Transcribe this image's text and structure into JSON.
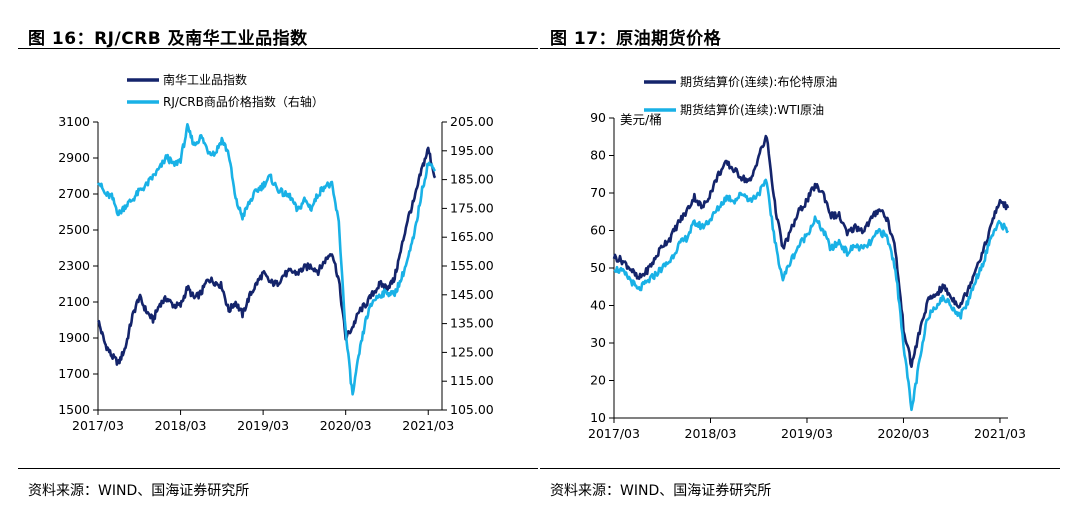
{
  "left": {
    "title": "图 16：RJ/CRB 及南华工业品指数",
    "source": "资料来源：WIND、国海证券研究所"
  },
  "right": {
    "title": "图 17：原油期货价格",
    "source": "资料来源：WIND、国海证券研究所"
  },
  "colors": {
    "dark_navy": "#14246b",
    "light_blue": "#19b1e6"
  },
  "chart_data": [
    {
      "type": "line",
      "title": "",
      "x_ticks": [
        "2017/03",
        "2018/03",
        "2019/03",
        "2020/03",
        "2021/03"
      ],
      "x_range": [
        "2017/03",
        "2021/05"
      ],
      "y_left": {
        "ticks": [
          1500,
          1700,
          1900,
          2100,
          2300,
          2500,
          2700,
          2900,
          3100
        ],
        "range": [
          1500,
          3100
        ]
      },
      "y_right": {
        "ticks": [
          "105.00",
          "115.00",
          "125.00",
          "135.00",
          "145.00",
          "155.00",
          "165.00",
          "175.00",
          "185.00",
          "195.00",
          "205.00"
        ],
        "range": [
          105,
          205
        ]
      },
      "grid": false,
      "legend_position": "top",
      "series": [
        {
          "name": "南华工业品指数",
          "axis": "left",
          "color": "#14246b",
          "x": [
            "2017/03",
            "2017/04",
            "2017/05",
            "2017/06",
            "2017/07",
            "2017/08",
            "2017/09",
            "2017/10",
            "2017/11",
            "2017/12",
            "2018/01",
            "2018/02",
            "2018/03",
            "2018/04",
            "2018/05",
            "2018/06",
            "2018/07",
            "2018/08",
            "2018/09",
            "2018/10",
            "2018/11",
            "2018/12",
            "2019/01",
            "2019/02",
            "2019/03",
            "2019/04",
            "2019/05",
            "2019/06",
            "2019/07",
            "2019/08",
            "2019/09",
            "2019/10",
            "2019/11",
            "2019/12",
            "2020/01",
            "2020/02",
            "2020/03",
            "2020/04",
            "2020/05",
            "2020/06",
            "2020/07",
            "2020/08",
            "2020/09",
            "2020/10",
            "2020/11",
            "2020/12",
            "2021/01",
            "2021/02",
            "2021/03",
            "2021/04"
          ],
          "values": [
            2000,
            1870,
            1800,
            1760,
            1850,
            2020,
            2130,
            2050,
            2000,
            2090,
            2120,
            2080,
            2080,
            2180,
            2120,
            2150,
            2230,
            2210,
            2190,
            2050,
            2100,
            2030,
            2130,
            2200,
            2260,
            2210,
            2200,
            2250,
            2270,
            2260,
            2290,
            2300,
            2270,
            2330,
            2380,
            2220,
            1900,
            1960,
            2050,
            2090,
            2150,
            2200,
            2180,
            2220,
            2380,
            2560,
            2670,
            2830,
            2950,
            2790
          ]
        },
        {
          "name": "RJ/CRB商品价格指数（右轴）",
          "axis": "right",
          "color": "#19b1e6",
          "x": [
            "2017/03",
            "2017/04",
            "2017/05",
            "2017/06",
            "2017/07",
            "2017/08",
            "2017/09",
            "2017/10",
            "2017/11",
            "2017/12",
            "2018/01",
            "2018/02",
            "2018/03",
            "2018/04",
            "2018/05",
            "2018/06",
            "2018/07",
            "2018/08",
            "2018/09",
            "2018/10",
            "2018/11",
            "2018/12",
            "2019/01",
            "2019/02",
            "2019/03",
            "2019/04",
            "2019/05",
            "2019/06",
            "2019/07",
            "2019/08",
            "2019/09",
            "2019/10",
            "2019/11",
            "2019/12",
            "2020/01",
            "2020/02",
            "2020/03",
            "2020/04",
            "2020/05",
            "2020/06",
            "2020/07",
            "2020/08",
            "2020/09",
            "2020/10",
            "2020/11",
            "2020/12",
            "2021/01",
            "2021/02",
            "2021/03",
            "2021/04"
          ],
          "values": [
            185,
            180,
            179,
            173,
            176,
            178,
            181,
            183,
            186,
            189,
            193,
            190,
            192,
            203,
            197,
            200,
            195,
            194,
            199,
            194,
            178,
            172,
            177,
            181,
            183,
            186,
            182,
            180,
            179,
            174,
            178,
            175,
            180,
            183,
            183,
            170,
            132,
            110,
            125,
            137,
            143,
            145,
            146,
            145,
            150,
            157,
            166,
            180,
            191,
            188
          ]
        }
      ]
    },
    {
      "type": "line",
      "title": "",
      "ylabel": "美元/桶",
      "x_ticks": [
        "2017/03",
        "2018/03",
        "2019/03",
        "2020/03",
        "2021/03"
      ],
      "x_range": [
        "2017/03",
        "2021/04"
      ],
      "y_left": {
        "ticks": [
          10,
          20,
          30,
          40,
          50,
          60,
          70,
          80,
          90
        ],
        "range": [
          10,
          90
        ]
      },
      "grid": false,
      "legend_position": "top",
      "series": [
        {
          "name": "期货结算价(连续):布伦特原油",
          "axis": "left",
          "color": "#14246b",
          "x": [
            "2017/03",
            "2017/04",
            "2017/05",
            "2017/06",
            "2017/07",
            "2017/08",
            "2017/09",
            "2017/10",
            "2017/11",
            "2017/12",
            "2018/01",
            "2018/02",
            "2018/03",
            "2018/04",
            "2018/05",
            "2018/06",
            "2018/07",
            "2018/08",
            "2018/09",
            "2018/10",
            "2018/11",
            "2018/12",
            "2019/01",
            "2019/02",
            "2019/03",
            "2019/04",
            "2019/05",
            "2019/06",
            "2019/07",
            "2019/08",
            "2019/09",
            "2019/10",
            "2019/11",
            "2019/12",
            "2020/01",
            "2020/02",
            "2020/03",
            "2020/04",
            "2020/05",
            "2020/06",
            "2020/07",
            "2020/08",
            "2020/09",
            "2020/10",
            "2020/11",
            "2020/12",
            "2021/01",
            "2021/02",
            "2021/03",
            "2021/04"
          ],
          "values": [
            53,
            52,
            50,
            47,
            49,
            52,
            56,
            58,
            62,
            65,
            69,
            66,
            70,
            75,
            78,
            76,
            74,
            73,
            80,
            85,
            67,
            55,
            60,
            65,
            68,
            72,
            70,
            64,
            64,
            59,
            61,
            60,
            63,
            66,
            63,
            55,
            34,
            24,
            33,
            41,
            43,
            45,
            42,
            40,
            44,
            50,
            55,
            62,
            68,
            66
          ]
        },
        {
          "name": "期货结算价(连续):WTI原油",
          "axis": "left",
          "color": "#19b1e6",
          "x": [
            "2017/03",
            "2017/04",
            "2017/05",
            "2017/06",
            "2017/07",
            "2017/08",
            "2017/09",
            "2017/10",
            "2017/11",
            "2017/12",
            "2018/01",
            "2018/02",
            "2018/03",
            "2018/04",
            "2018/05",
            "2018/06",
            "2018/07",
            "2018/08",
            "2018/09",
            "2018/10",
            "2018/11",
            "2018/12",
            "2019/01",
            "2019/02",
            "2019/03",
            "2019/04",
            "2019/05",
            "2019/06",
            "2019/07",
            "2019/08",
            "2019/09",
            "2019/10",
            "2019/11",
            "2019/12",
            "2020/01",
            "2020/02",
            "2020/03",
            "2020/04",
            "2020/05",
            "2020/06",
            "2020/07",
            "2020/08",
            "2020/09",
            "2020/10",
            "2020/11",
            "2020/12",
            "2021/01",
            "2021/02",
            "2021/03",
            "2021/04"
          ],
          "values": [
            50,
            49,
            47,
            44,
            46,
            48,
            50,
            52,
            56,
            58,
            62,
            61,
            63,
            66,
            69,
            68,
            70,
            68,
            70,
            73,
            57,
            47,
            52,
            56,
            59,
            63,
            60,
            55,
            57,
            54,
            56,
            55,
            57,
            60,
            58,
            50,
            30,
            12,
            25,
            37,
            40,
            42,
            40,
            37,
            41,
            47,
            52,
            59,
            62,
            60
          ]
        }
      ]
    }
  ]
}
